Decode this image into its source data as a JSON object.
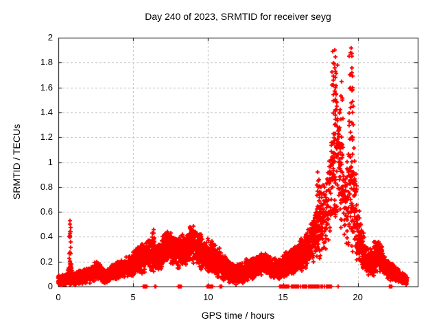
{
  "chart_data": {
    "type": "scatter",
    "title": "Day 240 of 2023, SRMTID for receiver seyg",
    "xlabel": "GPS time / hours",
    "ylabel": "SRMTID / TECUs",
    "xlim": [
      0,
      24
    ],
    "ylim": [
      0,
      2
    ],
    "xticks": {
      "values": [
        0,
        5,
        10,
        15,
        20
      ],
      "labels": [
        "0",
        "5",
        "10",
        "15",
        "20"
      ]
    },
    "yticks": {
      "values": [
        0,
        0.2,
        0.4,
        0.6,
        0.8,
        1,
        1.2,
        1.4,
        1.6,
        1.8,
        2
      ],
      "labels": [
        "0",
        "0.2",
        "0.4",
        "0.6",
        "0.8",
        "1",
        "1.2",
        "1.4",
        "1.6",
        "1.8",
        "2"
      ]
    },
    "grid": true,
    "grid_style": "dashed",
    "legend": "none",
    "marker": "plus",
    "marker_size_px": 7,
    "marker_color": "#ff0000",
    "grid_color": "#bcbcbc",
    "axis_color": "#000000",
    "background": "#ffffff",
    "peak": {
      "time_hours": 19.6,
      "value_tecus": 1.92
    },
    "series": {
      "name": "SRMTID",
      "seed": 20230240,
      "band_density_per_0p01h": 2.4,
      "band_profile": [
        [
          0.0,
          0.05,
          0.04,
          1
        ],
        [
          0.55,
          0.05,
          0.04,
          1
        ],
        [
          0.8,
          0.12,
          0.1,
          0.8
        ],
        [
          1.0,
          0.06,
          0.045,
          1
        ],
        [
          1.6,
          0.08,
          0.05,
          1
        ],
        [
          2.1,
          0.1,
          0.06,
          1
        ],
        [
          2.6,
          0.14,
          0.07,
          1
        ],
        [
          3.1,
          0.08,
          0.05,
          1
        ],
        [
          3.7,
          0.12,
          0.06,
          1
        ],
        [
          4.4,
          0.15,
          0.07,
          1
        ],
        [
          5.0,
          0.18,
          0.09,
          1
        ],
        [
          5.6,
          0.23,
          0.11,
          1
        ],
        [
          6.2,
          0.27,
          0.13,
          1
        ],
        [
          6.7,
          0.22,
          0.11,
          1
        ],
        [
          7.3,
          0.33,
          0.12,
          1
        ],
        [
          7.9,
          0.27,
          0.11,
          1
        ],
        [
          8.5,
          0.3,
          0.13,
          1
        ],
        [
          8.9,
          0.35,
          0.13,
          1
        ],
        [
          9.4,
          0.29,
          0.13,
          1
        ],
        [
          10.0,
          0.25,
          0.12,
          1
        ],
        [
          10.7,
          0.19,
          0.11,
          1
        ],
        [
          11.4,
          0.11,
          0.08,
          1
        ],
        [
          12.0,
          0.1,
          0.07,
          1
        ],
        [
          12.6,
          0.13,
          0.08,
          1
        ],
        [
          13.2,
          0.16,
          0.08,
          1
        ],
        [
          13.8,
          0.2,
          0.09,
          1
        ],
        [
          14.4,
          0.13,
          0.08,
          1
        ],
        [
          15.1,
          0.17,
          0.09,
          1
        ],
        [
          15.7,
          0.21,
          0.1,
          1
        ],
        [
          16.3,
          0.26,
          0.12,
          1
        ],
        [
          16.9,
          0.36,
          0.16,
          0.95
        ],
        [
          17.4,
          0.5,
          0.24,
          0.85
        ],
        [
          17.9,
          0.62,
          0.3,
          0.6
        ],
        [
          18.4,
          1.0,
          0.42,
          0.5
        ],
        [
          18.8,
          1.05,
          0.45,
          0.45
        ],
        [
          19.2,
          0.55,
          0.28,
          0.65
        ],
        [
          19.6,
          0.9,
          0.6,
          0.5
        ],
        [
          20.0,
          0.42,
          0.22,
          0.9
        ],
        [
          20.5,
          0.22,
          0.11,
          1
        ],
        [
          21.0,
          0.18,
          0.09,
          1
        ],
        [
          21.4,
          0.26,
          0.11,
          1
        ],
        [
          21.9,
          0.14,
          0.08,
          1
        ],
        [
          22.4,
          0.11,
          0.06,
          1
        ],
        [
          22.9,
          0.07,
          0.04,
          1
        ],
        [
          23.3,
          0.05,
          0.03,
          1
        ]
      ],
      "spikes": [
        [
          0.78,
          0.05,
          0.1,
          0.5,
          18
        ],
        [
          6.35,
          0.08,
          0.15,
          0.44,
          10
        ],
        [
          8.8,
          0.1,
          0.2,
          0.46,
          10
        ],
        [
          17.35,
          0.15,
          0.3,
          0.88,
          22
        ],
        [
          18.45,
          0.22,
          0.5,
          1.85,
          46
        ],
        [
          18.85,
          0.12,
          0.4,
          1.6,
          22
        ],
        [
          19.58,
          0.16,
          0.3,
          1.88,
          38
        ],
        [
          21.2,
          0.15,
          0.15,
          0.36,
          14
        ]
      ],
      "feature_points": [
        [
          0.78,
          0.53
        ],
        [
          0.8,
          0.5
        ],
        [
          6.35,
          0.46
        ],
        [
          8.8,
          0.48
        ],
        [
          17.3,
          0.92
        ],
        [
          17.35,
          0.85
        ],
        [
          18.3,
          1.89
        ],
        [
          18.45,
          1.9
        ],
        [
          18.4,
          1.79
        ],
        [
          18.5,
          1.73
        ],
        [
          18.35,
          1.62
        ],
        [
          18.55,
          1.55
        ],
        [
          18.6,
          1.45
        ],
        [
          18.65,
          1.35
        ],
        [
          18.7,
          1.25
        ],
        [
          18.75,
          1.15
        ],
        [
          18.8,
          1.4
        ],
        [
          18.9,
          1.65
        ],
        [
          18.95,
          1.5
        ],
        [
          19.0,
          1.35
        ],
        [
          19.5,
          1.88
        ],
        [
          19.55,
          1.92
        ],
        [
          19.6,
          1.85
        ],
        [
          19.62,
          1.76
        ],
        [
          19.65,
          1.6
        ],
        [
          19.68,
          1.45
        ],
        [
          19.7,
          1.3
        ]
      ],
      "zero_marks": [
        5.7,
        5.76,
        5.85,
        5.9,
        6.45,
        6.52,
        8.0,
        8.05,
        8.1,
        8.15,
        8.2,
        9.95,
        10.0,
        10.08,
        10.15,
        10.22,
        10.3,
        10.8,
        10.86,
        10.92,
        14.8,
        14.86,
        14.93,
        15.0,
        15.07,
        15.14,
        15.2,
        15.27,
        15.34,
        15.4,
        15.55,
        15.62,
        15.7,
        15.78,
        15.85,
        15.95,
        16.05,
        16.15,
        16.3,
        16.4,
        16.5,
        16.6,
        16.7,
        16.78,
        16.85,
        16.92,
        17.0,
        17.08,
        17.15,
        17.22,
        17.3,
        17.42,
        17.55,
        17.65,
        17.78,
        17.9,
        18.0,
        18.08,
        18.15,
        18.22,
        18.7,
        22.1,
        22.16,
        22.25
      ]
    }
  }
}
